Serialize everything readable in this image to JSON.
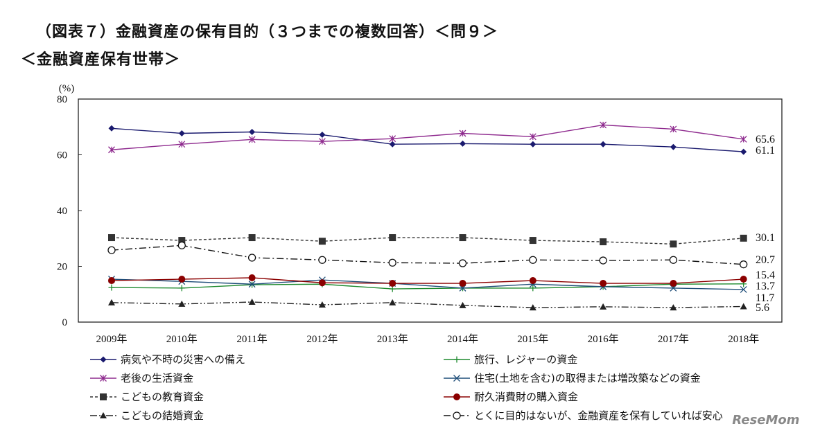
{
  "title": "（図表７）金融資産の保有目的（３つまでの複数回答）＜問９＞",
  "subtitle": "＜金融資産保有世帯＞",
  "chart_data": {
    "type": "line",
    "ylabel": "(%)",
    "ylim": [
      0,
      80
    ],
    "yticks": [
      0,
      20,
      40,
      60,
      80
    ],
    "grid": false,
    "legend_position": "bottom",
    "categories": [
      "2009年",
      "2010年",
      "2011年",
      "2012年",
      "2013年",
      "2014年",
      "2015年",
      "2016年",
      "2017年",
      "2018年"
    ],
    "series": [
      {
        "name": "病気や不時の災害への備え",
        "color": "#1a1a6e",
        "marker": "diamond",
        "dash": "solid",
        "values": [
          69.5,
          67.7,
          68.2,
          67.2,
          63.8,
          64.0,
          63.8,
          63.8,
          62.8,
          61.1
        ],
        "end_label": "61.1"
      },
      {
        "name": "老後の生活資金",
        "color": "#8e2a8e",
        "marker": "asterisk",
        "dash": "solid",
        "values": [
          61.8,
          63.8,
          65.5,
          64.8,
          65.8,
          67.7,
          66.5,
          70.7,
          69.2,
          65.6
        ],
        "end_label": "65.6"
      },
      {
        "name": "こどもの教育資金",
        "color": "#333333",
        "marker": "square",
        "dash": "dotted",
        "values": [
          30.3,
          29.3,
          30.3,
          29.0,
          30.3,
          30.3,
          29.3,
          28.8,
          28.0,
          30.1
        ],
        "end_label": "30.1"
      },
      {
        "name": "こどもの結婚資金",
        "color": "#222222",
        "marker": "triangle",
        "dash": "dashdotdot",
        "values": [
          7.0,
          6.5,
          7.2,
          6.2,
          7.0,
          6.0,
          5.2,
          5.5,
          5.2,
          5.6
        ],
        "end_label": "5.6"
      },
      {
        "name": "旅行、レジャーの資金",
        "color": "#1e8a2e",
        "marker": "plus",
        "dash": "solid",
        "values": [
          12.4,
          12.2,
          13.4,
          13.6,
          11.9,
          12.2,
          12.2,
          12.7,
          13.6,
          13.7
        ],
        "end_label": "13.7"
      },
      {
        "name": "住宅(土地を含む)の取得または増改築などの資金",
        "color": "#1f4e79",
        "marker": "x",
        "dash": "solid",
        "values": [
          15.4,
          14.6,
          13.6,
          15.1,
          13.9,
          12.2,
          13.6,
          12.7,
          12.2,
          11.7
        ],
        "end_label": "11.7"
      },
      {
        "name": "耐久消費財の購入資金",
        "color": "#8b0000",
        "marker": "circle",
        "dash": "solid",
        "values": [
          14.9,
          15.4,
          15.9,
          14.1,
          13.9,
          13.9,
          14.9,
          13.9,
          13.9,
          15.4
        ],
        "end_label": "15.4"
      },
      {
        "name": "とくに目的はないが、金融資産を保有していれば安心",
        "color": "#111111",
        "marker": "open-circle",
        "dash": "dashdot",
        "values": [
          25.8,
          27.5,
          23.1,
          22.3,
          21.3,
          21.1,
          22.3,
          22.1,
          22.3,
          20.7
        ],
        "end_label": "20.7"
      }
    ]
  },
  "watermark": "ReseMom"
}
